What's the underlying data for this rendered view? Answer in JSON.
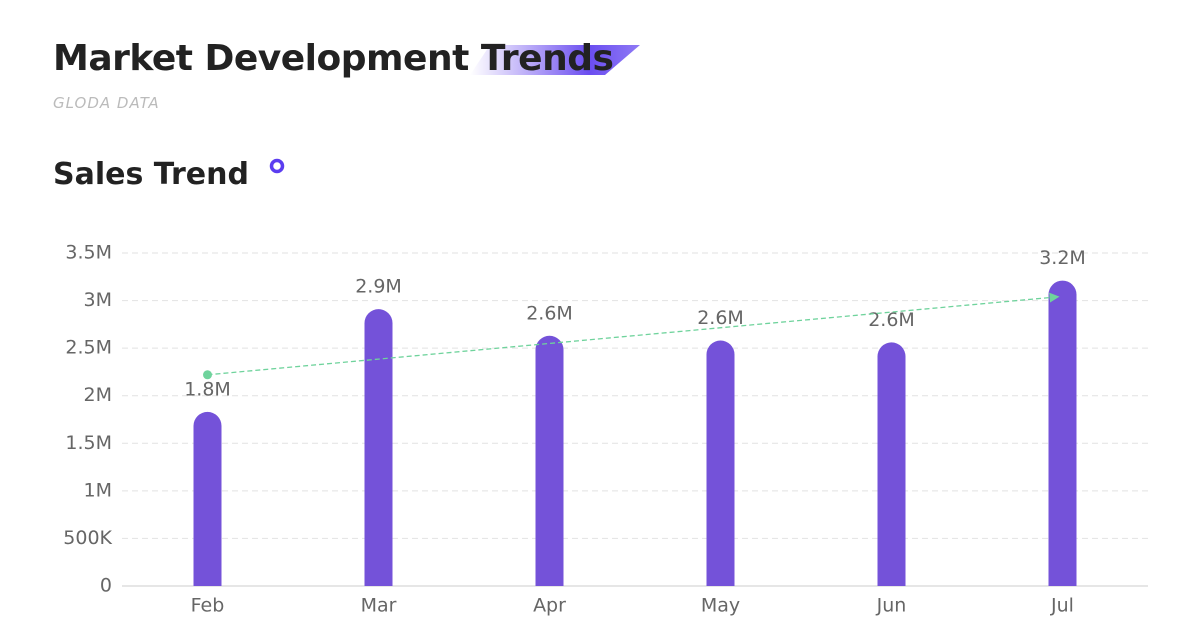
{
  "header": {
    "title": "Market Development Trends",
    "subtitle": "GLODA DATA"
  },
  "chart_data": {
    "type": "bar",
    "title": "Sales Trend",
    "categories": [
      "Feb",
      "Mar",
      "Apr",
      "May",
      "Jun",
      "Jul"
    ],
    "values": [
      1830000,
      2910000,
      2630000,
      2580000,
      2560000,
      3210000
    ],
    "value_labels": [
      "1.8M",
      "2.9M",
      "2.6M",
      "2.6M",
      "2.6M",
      "3.2M"
    ],
    "color": "#7452d9",
    "trend": {
      "values": [
        2220000,
        3040000
      ],
      "color": "#6fd39c"
    },
    "ylim": [
      0,
      3500000
    ],
    "yticks": [
      0,
      {
        "value": 500000,
        "label": "500K"
      },
      {
        "value": 1000000,
        "label": "1M"
      },
      {
        "value": 1500000,
        "label": "1.5M"
      },
      {
        "value": 2000000,
        "label": "2M"
      },
      {
        "value": 2500000,
        "label": "2.5M"
      },
      {
        "value": 3000000,
        "label": "3M"
      },
      {
        "value": 3500000,
        "label": "3.5M"
      }
    ],
    "grid": true
  }
}
